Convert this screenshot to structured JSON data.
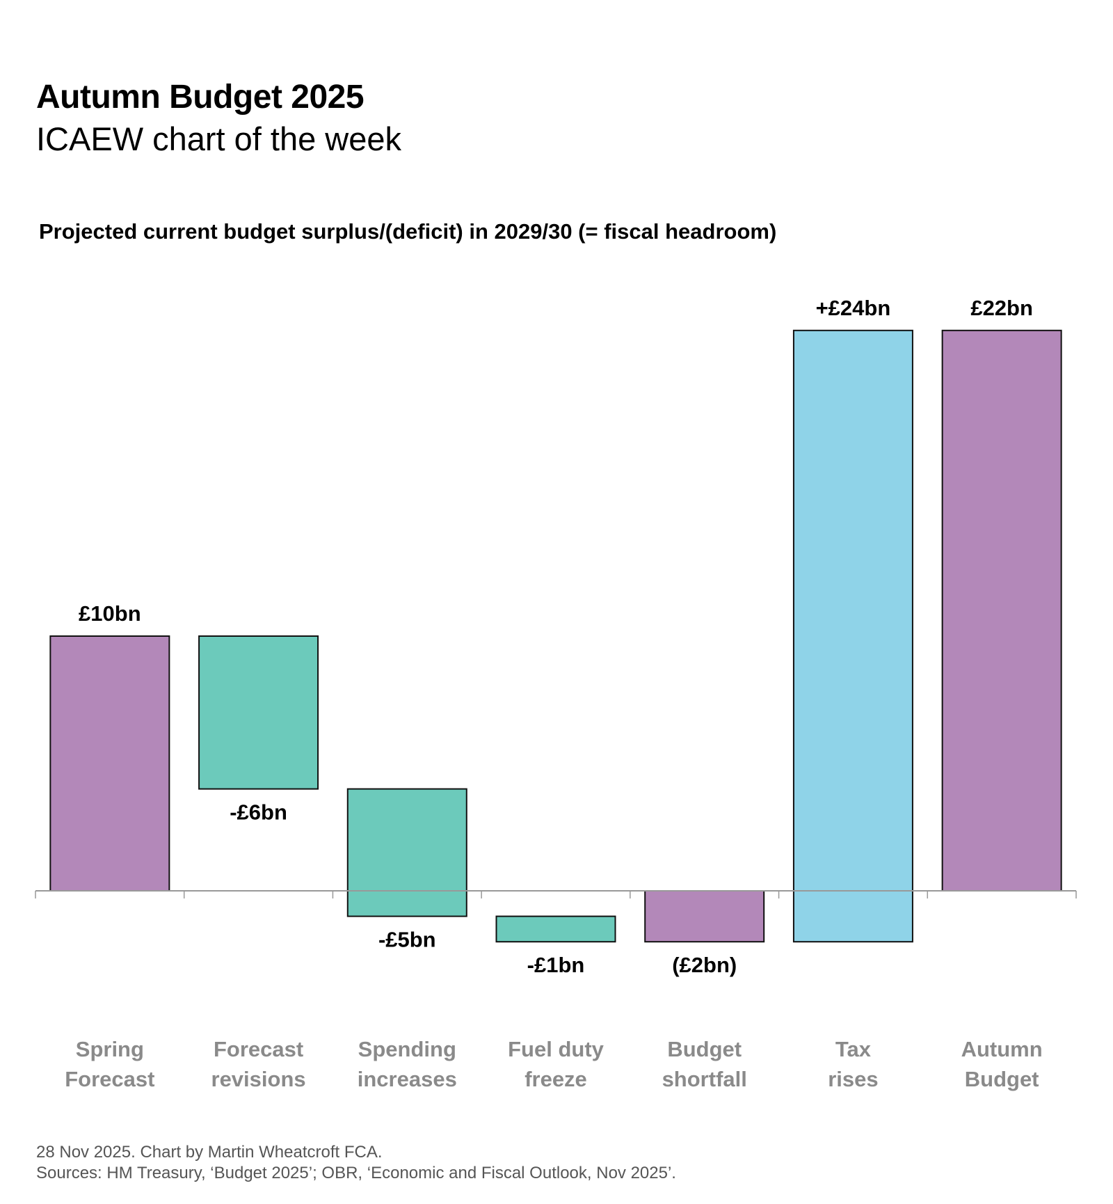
{
  "header": {
    "title": "Autumn Budget 2025",
    "subtitle": "ICAEW chart of the week"
  },
  "chart_data": {
    "type": "waterfall",
    "title": "Projected current budget surplus/(deficit) in 2029/30 (= fiscal headroom)",
    "unit": "£bn",
    "ylim": [
      -2,
      22
    ],
    "grid": false,
    "categories": [
      [
        "Spring",
        "Forecast"
      ],
      [
        "Forecast",
        "revisions"
      ],
      [
        "Spending",
        "increases"
      ],
      [
        "Fuel duty",
        "freeze"
      ],
      [
        "Budget",
        "shortfall"
      ],
      [
        "Tax",
        "rises"
      ],
      [
        "Autumn",
        "Budget"
      ]
    ],
    "bars": [
      {
        "start": 0,
        "end": 10,
        "value": 10,
        "label": "£10bn",
        "kind": "total",
        "color": "#b388b9"
      },
      {
        "start": 10,
        "end": 4,
        "value": -6,
        "label": "-£6bn",
        "kind": "change",
        "color": "#6ccabb"
      },
      {
        "start": 4,
        "end": -1,
        "value": -5,
        "label": "-£5bn",
        "kind": "change",
        "color": "#6ccabb"
      },
      {
        "start": -1,
        "end": -2,
        "value": -1,
        "label": "-£1bn",
        "kind": "change",
        "color": "#6ccabb"
      },
      {
        "start": 0,
        "end": -2,
        "value": -2,
        "label": "(£2bn)",
        "kind": "total",
        "color": "#b388b9"
      },
      {
        "start": -2,
        "end": 22,
        "value": 24,
        "label": "+£24bn",
        "kind": "change",
        "color": "#8fd3e8"
      },
      {
        "start": 0,
        "end": 22,
        "value": 22,
        "label": "£22bn",
        "kind": "total",
        "color": "#b388b9"
      }
    ]
  },
  "footer": {
    "line1": "28 Nov 2025.   Chart by Martin Wheatcroft FCA.",
    "line2": "Sources: HM Treasury, ‘Budget 2025’; OBR, ‘Economic and Fiscal Outlook, Nov 2025’."
  }
}
